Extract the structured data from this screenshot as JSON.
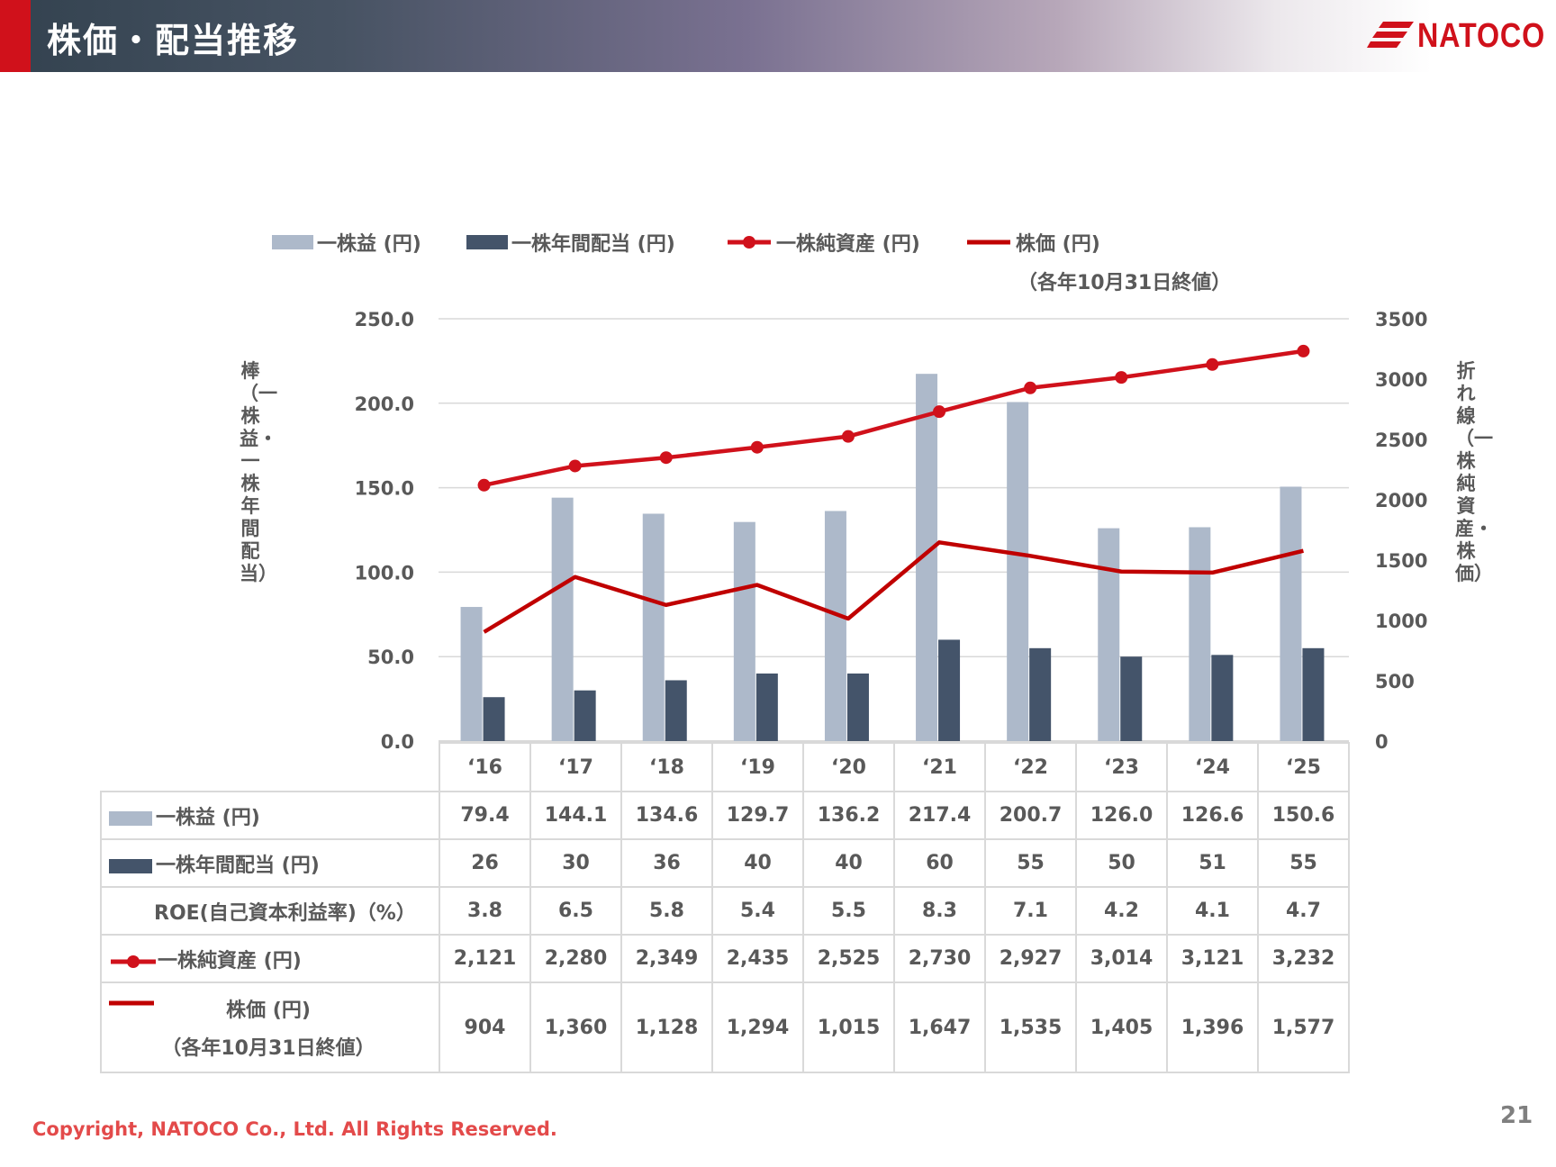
{
  "header": {
    "title": "株価・配当推移",
    "logo_text": "NATOCO"
  },
  "colors": {
    "eps": "#adb9ca",
    "dividend": "#44546a",
    "bps": "#d0111b",
    "price": "#c00000",
    "brand": "#d0111b"
  },
  "legend": {
    "eps": "一株益 (円)",
    "dividend": "一株年間配当 (円)",
    "bps": "一株純資産 (円)",
    "price": "株価 (円)",
    "price_note": "（各年10月31日終値）"
  },
  "axes": {
    "left_title": "棒（一株益・一株年間配当）",
    "right_title": "折れ線（一株純資産・株価）"
  },
  "chart_data": {
    "type": "bar",
    "categories": [
      "‘16",
      "‘17",
      "‘18",
      "‘19",
      "‘20",
      "‘21",
      "‘22",
      "‘23",
      "‘24",
      "‘25"
    ],
    "y_left": {
      "range": [
        0,
        250
      ],
      "ticks": [
        "0.0",
        "50.0",
        "100.0",
        "150.0",
        "200.0",
        "250.0"
      ]
    },
    "y_right": {
      "range": [
        0,
        3500
      ],
      "ticks": [
        "0",
        "500",
        "1000",
        "1500",
        "2000",
        "2500",
        "3000",
        "3500"
      ]
    },
    "grid": true,
    "legend_position": "top",
    "series": [
      {
        "name": "一株益 (円)",
        "type": "bar",
        "axis": "left",
        "values": [
          79.4,
          144.1,
          134.6,
          129.7,
          136.2,
          217.4,
          200.7,
          126.0,
          126.6,
          150.6
        ]
      },
      {
        "name": "一株年間配当 (円)",
        "type": "bar",
        "axis": "left",
        "values": [
          26,
          30,
          36,
          40,
          40,
          60,
          55,
          50,
          51,
          55
        ]
      },
      {
        "name": "一株純資産 (円)",
        "type": "line-marker",
        "axis": "right",
        "values": [
          2121,
          2280,
          2349,
          2435,
          2525,
          2730,
          2927,
          3014,
          3121,
          3232
        ]
      },
      {
        "name": "株価 (円)",
        "type": "line",
        "axis": "right",
        "values": [
          904,
          1360,
          1128,
          1294,
          1015,
          1647,
          1535,
          1405,
          1396,
          1577
        ]
      }
    ]
  },
  "table": {
    "rows": [
      {
        "label": "一株益 (円)",
        "swatch": "eps",
        "cells": [
          "79.4",
          "144.1",
          "134.6",
          "129.7",
          "136.2",
          "217.4",
          "200.7",
          "126.0",
          "126.6",
          "150.6"
        ]
      },
      {
        "label": "一株年間配当 (円)",
        "swatch": "dividend",
        "cells": [
          "26",
          "30",
          "36",
          "40",
          "40",
          "60",
          "55",
          "50",
          "51",
          "55"
        ]
      },
      {
        "label": "ROE(自己資本利益率)（%）",
        "swatch": "none",
        "cells": [
          "3.8",
          "6.5",
          "5.8",
          "5.4",
          "5.5",
          "8.3",
          "7.1",
          "4.2",
          "4.1",
          "4.7"
        ]
      },
      {
        "label": "一株純資産 (円)",
        "swatch": "bps",
        "cells": [
          "2,121",
          "2,280",
          "2,349",
          "2,435",
          "2,525",
          "2,730",
          "2,927",
          "3,014",
          "3,121",
          "3,232"
        ]
      },
      {
        "label": "株価 (円)",
        "label2": "（各年10月31日終値）",
        "swatch": "price",
        "cells": [
          "904",
          "1,360",
          "1,128",
          "1,294",
          "1,015",
          "1,647",
          "1,535",
          "1,405",
          "1,396",
          "1,577"
        ]
      }
    ]
  },
  "footer": {
    "copyright": "Copyright, NATOCO Co., Ltd. All Rights Reserved.",
    "page": "21"
  }
}
